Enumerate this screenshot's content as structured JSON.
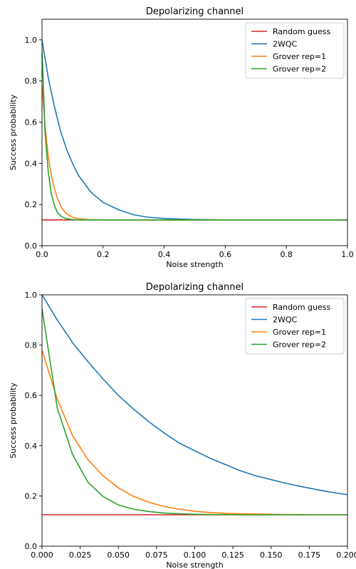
{
  "chart_data": [
    {
      "type": "line",
      "title": "Depolarizing channel",
      "xlabel": "Noise strength",
      "ylabel": "Success probability",
      "xlim": [
        0.0,
        1.0
      ],
      "ylim": [
        0.0,
        1.1
      ],
      "xticks": [
        "0.0",
        "0.2",
        "0.4",
        "0.6",
        "0.8",
        "1.0"
      ],
      "yticks": [
        "0.0",
        "0.2",
        "0.4",
        "0.6",
        "0.8",
        "1.0"
      ],
      "grid": false,
      "legend_position": "top-right",
      "series": [
        {
          "name": "Random guess",
          "color": "#d62728",
          "x": [
            0.0,
            1.0
          ],
          "y": [
            0.125,
            0.125
          ]
        },
        {
          "name": "2WQC",
          "color": "#1f77b4",
          "x": [
            0.0,
            0.02,
            0.04,
            0.06,
            0.08,
            0.1,
            0.12,
            0.14,
            0.16,
            0.18,
            0.2,
            0.25,
            0.3,
            0.35,
            0.4,
            0.5,
            0.6,
            0.8,
            1.0
          ],
          "y": [
            1.0,
            0.82,
            0.68,
            0.56,
            0.47,
            0.4,
            0.34,
            0.3,
            0.26,
            0.235,
            0.21,
            0.175,
            0.15,
            0.138,
            0.132,
            0.127,
            0.125,
            0.125,
            0.125
          ]
        },
        {
          "name": "Grover rep=1",
          "color": "#ff7f0e",
          "x": [
            0.0,
            0.01,
            0.02,
            0.03,
            0.04,
            0.05,
            0.06,
            0.07,
            0.08,
            0.1,
            0.12,
            0.15,
            0.2,
            0.3,
            1.0
          ],
          "y": [
            0.78,
            0.58,
            0.44,
            0.345,
            0.28,
            0.232,
            0.195,
            0.172,
            0.155,
            0.138,
            0.131,
            0.127,
            0.125,
            0.125,
            0.125
          ]
        },
        {
          "name": "Grover rep=2",
          "color": "#2ca02c",
          "x": [
            0.0,
            0.01,
            0.02,
            0.03,
            0.04,
            0.05,
            0.06,
            0.07,
            0.08,
            0.1,
            0.12,
            0.15,
            0.2,
            1.0
          ],
          "y": [
            0.95,
            0.55,
            0.365,
            0.255,
            0.198,
            0.163,
            0.146,
            0.137,
            0.131,
            0.127,
            0.125,
            0.125,
            0.125,
            0.125
          ]
        }
      ]
    },
    {
      "type": "line",
      "title": "Depolarizing channel",
      "xlabel": "Noise strength",
      "ylabel": "Success probability",
      "xlim": [
        0.0,
        0.2
      ],
      "ylim": [
        0.0,
        1.0
      ],
      "xticks": [
        "0.000",
        "0.025",
        "0.050",
        "0.075",
        "0.100",
        "0.125",
        "0.150",
        "0.175",
        "0.200"
      ],
      "yticks": [
        "0.0",
        "0.2",
        "0.4",
        "0.6",
        "0.8",
        "1.0"
      ],
      "grid": false,
      "legend_position": "top-right",
      "series": [
        {
          "name": "Random guess",
          "color": "#d62728",
          "x": [
            0.0,
            0.2
          ],
          "y": [
            0.125,
            0.125
          ]
        },
        {
          "name": "2WQC",
          "color": "#1f77b4",
          "x": [
            0.0,
            0.01,
            0.02,
            0.03,
            0.04,
            0.05,
            0.06,
            0.07,
            0.08,
            0.09,
            0.1,
            0.11,
            0.12,
            0.13,
            0.14,
            0.15,
            0.16,
            0.17,
            0.18,
            0.19,
            0.2
          ],
          "y": [
            1.0,
            0.9,
            0.81,
            0.735,
            0.665,
            0.6,
            0.545,
            0.495,
            0.45,
            0.41,
            0.38,
            0.35,
            0.325,
            0.3,
            0.28,
            0.265,
            0.25,
            0.237,
            0.225,
            0.214,
            0.205
          ]
        },
        {
          "name": "Grover rep=1",
          "color": "#ff7f0e",
          "x": [
            0.0,
            0.01,
            0.02,
            0.03,
            0.04,
            0.05,
            0.06,
            0.07,
            0.08,
            0.09,
            0.1,
            0.11,
            0.12,
            0.13,
            0.14,
            0.15,
            0.16,
            0.17,
            0.18,
            0.19,
            0.2
          ],
          "y": [
            0.78,
            0.585,
            0.44,
            0.345,
            0.28,
            0.232,
            0.198,
            0.175,
            0.158,
            0.147,
            0.139,
            0.134,
            0.131,
            0.129,
            0.128,
            0.127,
            0.126,
            0.126,
            0.125,
            0.125,
            0.125
          ]
        },
        {
          "name": "Grover rep=2",
          "color": "#2ca02c",
          "x": [
            0.0,
            0.01,
            0.02,
            0.03,
            0.04,
            0.05,
            0.06,
            0.07,
            0.08,
            0.09,
            0.1,
            0.11,
            0.12,
            0.13,
            0.14,
            0.15,
            0.16,
            0.17,
            0.18,
            0.19,
            0.2
          ],
          "y": [
            0.945,
            0.55,
            0.365,
            0.255,
            0.198,
            0.164,
            0.147,
            0.138,
            0.132,
            0.129,
            0.127,
            0.126,
            0.126,
            0.125,
            0.125,
            0.125,
            0.125,
            0.125,
            0.125,
            0.125,
            0.125
          ]
        }
      ]
    }
  ]
}
